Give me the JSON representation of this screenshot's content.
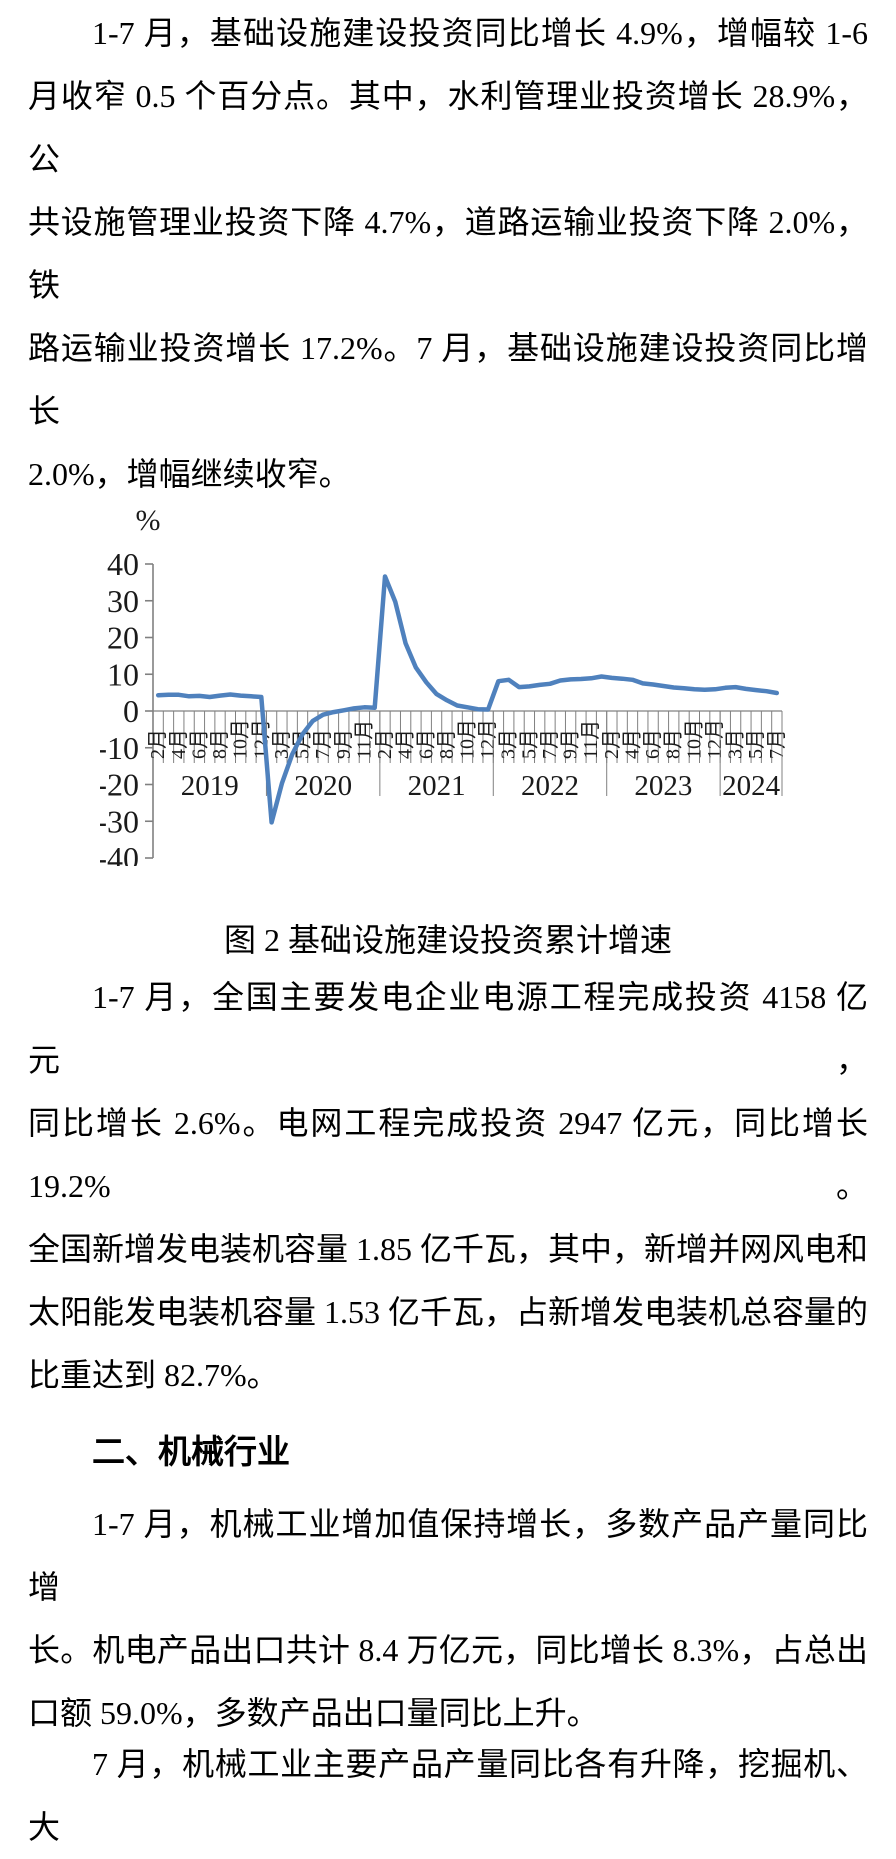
{
  "document": {
    "paragraph_infrastructure": {
      "lines": [
        "1-7 月，基础设施建设投资同比增长 4.9%，增幅较 1-6",
        "月收窄 0.5 个百分点。其中，水利管理业投资增长 28.9%，公",
        "共设施管理业投资下降 4.7%，道路运输业投资下降 2.0%，铁",
        "路运输业投资增长 17.2%。7 月，基础设施建设投资同比增长",
        "2.0%，增幅继续收窄。"
      ]
    },
    "figure_caption": "图 2 基础设施建设投资累计增速",
    "paragraph_power": {
      "lines": [
        "1-7 月，全国主要发电企业电源工程完成投资 4158 亿元，",
        "同比增长 2.6%。电网工程完成投资 2947 亿元，同比增长 19.2%。",
        "全国新增发电装机容量 1.85 亿千瓦，其中，新增并网风电和",
        "太阳能发电装机容量 1.53 亿千瓦，占新增发电装机总容量的",
        "比重达到 82.7%。"
      ]
    },
    "section_heading": "二、机械行业",
    "paragraph_machinery": {
      "lines": [
        "1-7 月，机械工业增加值保持增长，多数产品产量同比增",
        "长。机电产品出口共计 8.4 万亿元，同比增长 8.3%，占总出",
        "口额 59.0%，多数产品出口量同比上升。"
      ]
    },
    "paragraph_machinery_july": {
      "lines": [
        "7 月，机械工业主要产品产量同比各有升降，挖掘机、大"
      ]
    }
  },
  "chart_data": {
    "type": "line",
    "title": "图 2 基础设施建设投资累计增速",
    "series_name": "基础设施建设投资累计增速",
    "unit_label": "%",
    "y_axis": {
      "min": -40,
      "max": 40,
      "tick_step": 10
    },
    "yticks": [
      40,
      30,
      20,
      10,
      0,
      -10,
      -20,
      -30,
      -40
    ],
    "grid": false,
    "legend": "none",
    "line_color": "#4F81BD",
    "axis_color": "#808080",
    "label_color": "#1a1a1a",
    "data_by_year": [
      {
        "year": "2019",
        "months": [
          "2月",
          "3月",
          "4月",
          "5月",
          "6月",
          "7月",
          "8月",
          "9月",
          "10月",
          "11月",
          "12月"
        ],
        "values": [
          4.3,
          4.4,
          4.4,
          4.0,
          4.1,
          3.8,
          4.2,
          4.5,
          4.2,
          4.0,
          3.8
        ],
        "visible_month_ticks": [
          "2月",
          "4月",
          "6月",
          "8月",
          "10月",
          "12月"
        ]
      },
      {
        "year": "2020",
        "months": [
          "2月",
          "3月",
          "4月",
          "5月",
          "6月",
          "7月",
          "8月",
          "9月",
          "10月",
          "11月",
          "12月"
        ],
        "values": [
          -30.3,
          -19.7,
          -11.8,
          -6.3,
          -2.7,
          -1.0,
          -0.3,
          0.2,
          0.7,
          1.0,
          0.9
        ],
        "visible_month_ticks": [
          "3月",
          "5月",
          "7月",
          "9月",
          "11月"
        ]
      },
      {
        "year": "2021",
        "months": [
          "2月",
          "3月",
          "4月",
          "5月",
          "6月",
          "7月",
          "8月",
          "9月",
          "10月",
          "11月",
          "12月"
        ],
        "values": [
          36.6,
          29.7,
          18.4,
          11.8,
          7.8,
          4.6,
          2.9,
          1.5,
          1.0,
          0.5,
          0.4
        ],
        "visible_month_ticks": [
          "2月",
          "4月",
          "6月",
          "8月",
          "10月",
          "12月"
        ]
      },
      {
        "year": "2022",
        "months": [
          "2月",
          "3月",
          "4月",
          "5月",
          "6月",
          "7月",
          "8月",
          "9月",
          "10月",
          "11月",
          "12月"
        ],
        "values": [
          8.1,
          8.5,
          6.5,
          6.7,
          7.1,
          7.4,
          8.3,
          8.6,
          8.7,
          8.9,
          9.4
        ],
        "visible_month_ticks": [
          "3月",
          "5月",
          "7月",
          "9月",
          "11月"
        ]
      },
      {
        "year": "2023",
        "months": [
          "2月",
          "3月",
          "4月",
          "5月",
          "6月",
          "7月",
          "8月",
          "9月",
          "10月",
          "11月",
          "12月"
        ],
        "values": [
          9.0,
          8.8,
          8.5,
          7.5,
          7.2,
          6.8,
          6.4,
          6.2,
          5.9,
          5.8,
          5.9
        ],
        "visible_month_ticks": [
          "2月",
          "4月",
          "6月",
          "8月",
          "10月",
          "12月"
        ]
      },
      {
        "year": "2024",
        "months": [
          "2月",
          "3月",
          "4月",
          "5月",
          "6月",
          "7月"
        ],
        "values": [
          6.3,
          6.5,
          6.0,
          5.7,
          5.4,
          4.9
        ],
        "visible_month_ticks": [
          "3月",
          "5月",
          "7月"
        ]
      }
    ]
  }
}
